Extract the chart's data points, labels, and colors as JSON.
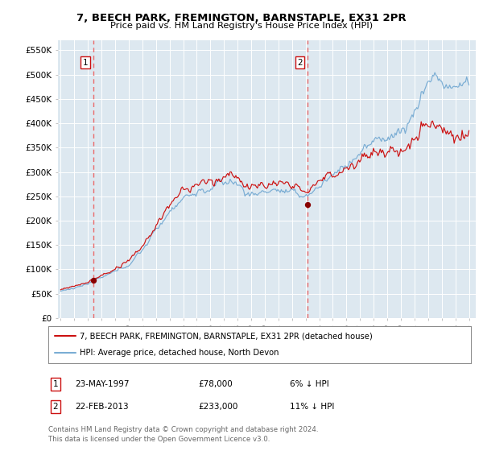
{
  "title": "7, BEECH PARK, FREMINGTON, BARNSTAPLE, EX31 2PR",
  "subtitle": "Price paid vs. HM Land Registry's House Price Index (HPI)",
  "legend_line1": "7, BEECH PARK, FREMINGTON, BARNSTAPLE, EX31 2PR (detached house)",
  "legend_line2": "HPI: Average price, detached house, North Devon",
  "footnote1": "Contains HM Land Registry data © Crown copyright and database right 2024.",
  "footnote2": "This data is licensed under the Open Government Licence v3.0.",
  "sale1_label": "1",
  "sale1_date": "23-MAY-1997",
  "sale1_price": "£78,000",
  "sale1_hpi": "6% ↓ HPI",
  "sale1_year": 1997.38,
  "sale1_value": 78000,
  "sale2_label": "2",
  "sale2_date": "22-FEB-2013",
  "sale2_price": "£233,000",
  "sale2_hpi": "11% ↓ HPI",
  "sale2_year": 2013.13,
  "sale2_value": 233000,
  "hpi_color": "#7aadd4",
  "price_color": "#cc1111",
  "vline_color": "#ee5555",
  "dot_color": "#880000",
  "plot_bg": "#dde8f0",
  "ylim_min": 0,
  "ylim_max": 570000,
  "yticks": [
    0,
    50000,
    100000,
    150000,
    200000,
    250000,
    300000,
    350000,
    400000,
    450000,
    500000,
    550000
  ],
  "ytick_labels": [
    "£0",
    "£50K",
    "£100K",
    "£150K",
    "£200K",
    "£250K",
    "£300K",
    "£350K",
    "£400K",
    "£450K",
    "£500K",
    "£550K"
  ],
  "xlim_min": 1994.8,
  "xlim_max": 2025.5,
  "xtick_years": [
    1995,
    1996,
    1997,
    1998,
    1999,
    2000,
    2001,
    2002,
    2003,
    2004,
    2005,
    2006,
    2007,
    2008,
    2009,
    2010,
    2011,
    2012,
    2013,
    2014,
    2015,
    2016,
    2017,
    2018,
    2019,
    2020,
    2021,
    2022,
    2023,
    2024,
    2025
  ]
}
